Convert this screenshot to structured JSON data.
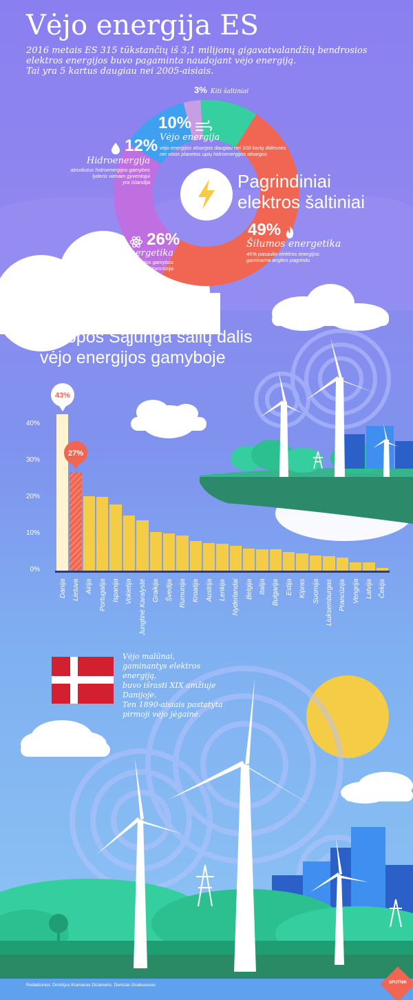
{
  "header": {
    "title": "Vėjo energija ES",
    "intro_lines": [
      "2016 metais ES 315 tūkstančių iš 3,1 milijonų gigavatvalandžių bendrosios",
      "elektros energijos buvo pagaminta naudojant vėjo energiją.",
      "Tai yra 5 kartus daugiau nei 2005-aisiais."
    ]
  },
  "donut": {
    "center_label_line1": "Pagrindiniai",
    "center_label_line2": "elektros šaltiniai",
    "segments": [
      {
        "key": "other",
        "percent": 3,
        "percent_label": "3%",
        "name": "Kiti šaltiniai",
        "desc": [],
        "color": "#c79de3"
      },
      {
        "key": "wind",
        "percent": 10,
        "percent_label": "10%",
        "name": "Vėjo energija",
        "desc": [
          "vėjo energijos atsargos daugiau nei 100 kartų didesnės",
          "nei visos planetos upių hidroenergijos atsargos"
        ],
        "color": "#35cfa0"
      },
      {
        "key": "thermal",
        "percent": 49,
        "percent_label": "49%",
        "name": "Šilumos energetika",
        "desc": [
          "46% pasaulio elektros energijos",
          "gaminama anglies pagrindu"
        ],
        "color": "#f06652"
      },
      {
        "key": "nuclear",
        "percent": 26,
        "percent_label": "26%",
        "name": "Branduolinė energetika",
        "desc": [
          "pasauliniai branduolinės energijos gamybos",
          "lyderiai yra JAV ir Prancūzija"
        ],
        "color": "#bf6fe0"
      },
      {
        "key": "hydro",
        "percent": 12,
        "percent_label": "12%",
        "name": "Hidroenergija",
        "desc": [
          "absoliutus hidroenergijos gamybos",
          "lyderis vienam gyventojui",
          "yra Islandija"
        ],
        "color": "#3f9ff0"
      }
    ]
  },
  "chart_section": {
    "title_line1": "Europos Sąjunga šalių dalis",
    "title_line2": "vėjo energijos gamyboje"
  },
  "chart_data": {
    "type": "bar",
    "categories": [
      "Danija",
      "Lietuva",
      "Airija",
      "Portugalija",
      "Ispanija",
      "Vokietija",
      "Jungtinė Karalystė",
      "Graikija",
      "Švedija",
      "Rumunija",
      "Kroatija",
      "Austrija",
      "Lenkija",
      "Nyderlandai",
      "Belgija",
      "Italija",
      "Bulgarija",
      "Estija",
      "Kipras",
      "Suomija",
      "Liuksemburgas",
      "Prancūzija",
      "Vengrija",
      "Latvija",
      "Čekija"
    ],
    "values": [
      43,
      27,
      20.5,
      20.2,
      18.1,
      15.2,
      13.8,
      10.5,
      10.2,
      9.6,
      8.2,
      7.6,
      7.3,
      6.8,
      6.0,
      5.8,
      5.8,
      5.1,
      4.7,
      4.2,
      4.0,
      3.6,
      2.3,
      2.2,
      0.7
    ],
    "ylim": [
      0,
      45
    ],
    "yticks": [
      "0%",
      "10%",
      "20%",
      "30%",
      "40%"
    ],
    "ytick_values": [
      0,
      10,
      20,
      30,
      40
    ],
    "callouts": [
      {
        "index": 0,
        "label": "43%",
        "color": "#ffffff",
        "text_color": "#f06652"
      },
      {
        "index": 1,
        "label": "27%",
        "color": "#f06652",
        "text_color": "#ffffff"
      }
    ],
    "bar_color": "#f5cc45",
    "highlight_colors": {
      "Danija": "#fff3d2",
      "Lietuva": "#f06652"
    },
    "grid": false
  },
  "denmark": {
    "text_lines": [
      "Vėjo malūnai,",
      "gaminantys elektros energiją,",
      "buvo išrasti XIX amžiuje Danijoje.",
      "Ten 1890-aisiais pastatyta",
      "pirmoji vėjo jėgainė."
    ]
  },
  "footer": {
    "credits": "Redaktorius: Dmitrijus Kramaras Dizaineris: Denizas Grabusovas",
    "logo": "SPUTNIK"
  }
}
